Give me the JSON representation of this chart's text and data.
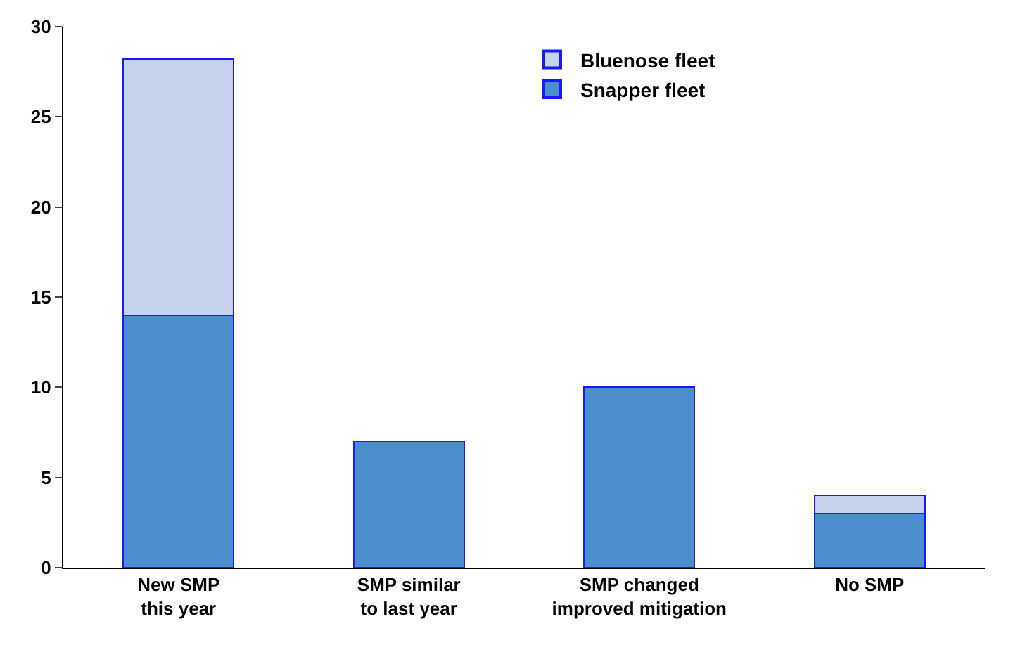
{
  "chart_data": {
    "type": "bar",
    "stacked": true,
    "categories": [
      "New SMP\nthis year",
      "SMP similar\nto last year",
      "SMP changed\nimproved mitigation",
      "No SMP"
    ],
    "series": [
      {
        "name": "Snapper fleet",
        "color": "#4a8fcc",
        "values": [
          14,
          7,
          10,
          3
        ]
      },
      {
        "name": "Bluenose fleet",
        "color": "#c5d3ec",
        "values": [
          14.2,
          null,
          null,
          1
        ]
      }
    ],
    "ylim": [
      0,
      30
    ],
    "yticks": [
      0,
      5,
      10,
      15,
      20,
      25,
      30
    ],
    "legend": "top right"
  }
}
